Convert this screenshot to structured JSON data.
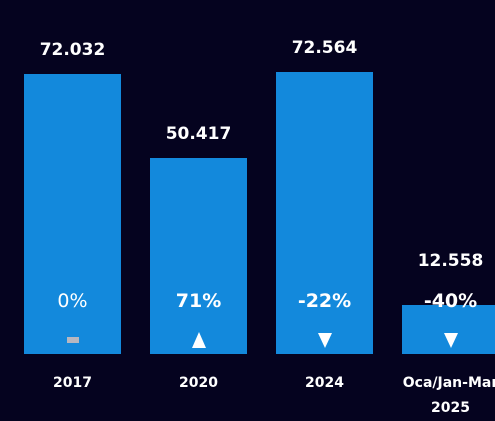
{
  "chart_data": {
    "type": "bar",
    "categories": [
      "2017",
      "2020",
      "2024",
      "Oca/Jan-Mar 2025"
    ],
    "values": [
      72032,
      50417,
      72564,
      12558
    ],
    "value_labels": [
      "72.032",
      "50.417",
      "72.564",
      "12.558"
    ],
    "change_labels": [
      "0%",
      "71%",
      "-22%",
      "-40%"
    ],
    "color": "#1389dc"
  }
}
